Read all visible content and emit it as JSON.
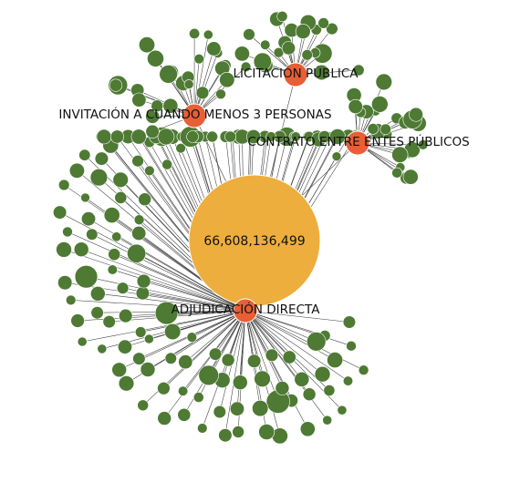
{
  "center": {
    "label": "66,608,136,499",
    "color": "#EDAE3E"
  },
  "hubs": [
    {
      "id": "adj",
      "label": "ADJUDICACIÓN DIRECTA",
      "color": "#E85E35",
      "leaf_count": 140
    },
    {
      "id": "lic",
      "label": "LICITACIÓN PÚBLICA",
      "color": "#E85E35",
      "leaf_count": 22
    },
    {
      "id": "inv",
      "label": "INVITACIÓN A CUANDO MENOS 3 PERSONAS",
      "color": "#E85E35",
      "leaf_count": 26
    },
    {
      "id": "con",
      "label": "CONTRATO ENTRE ENTES PÚBLICOS",
      "color": "#E85E35",
      "leaf_count": 24
    }
  ],
  "leaf_color": "#4E7A34",
  "edge_color": "#3A3A3A"
}
